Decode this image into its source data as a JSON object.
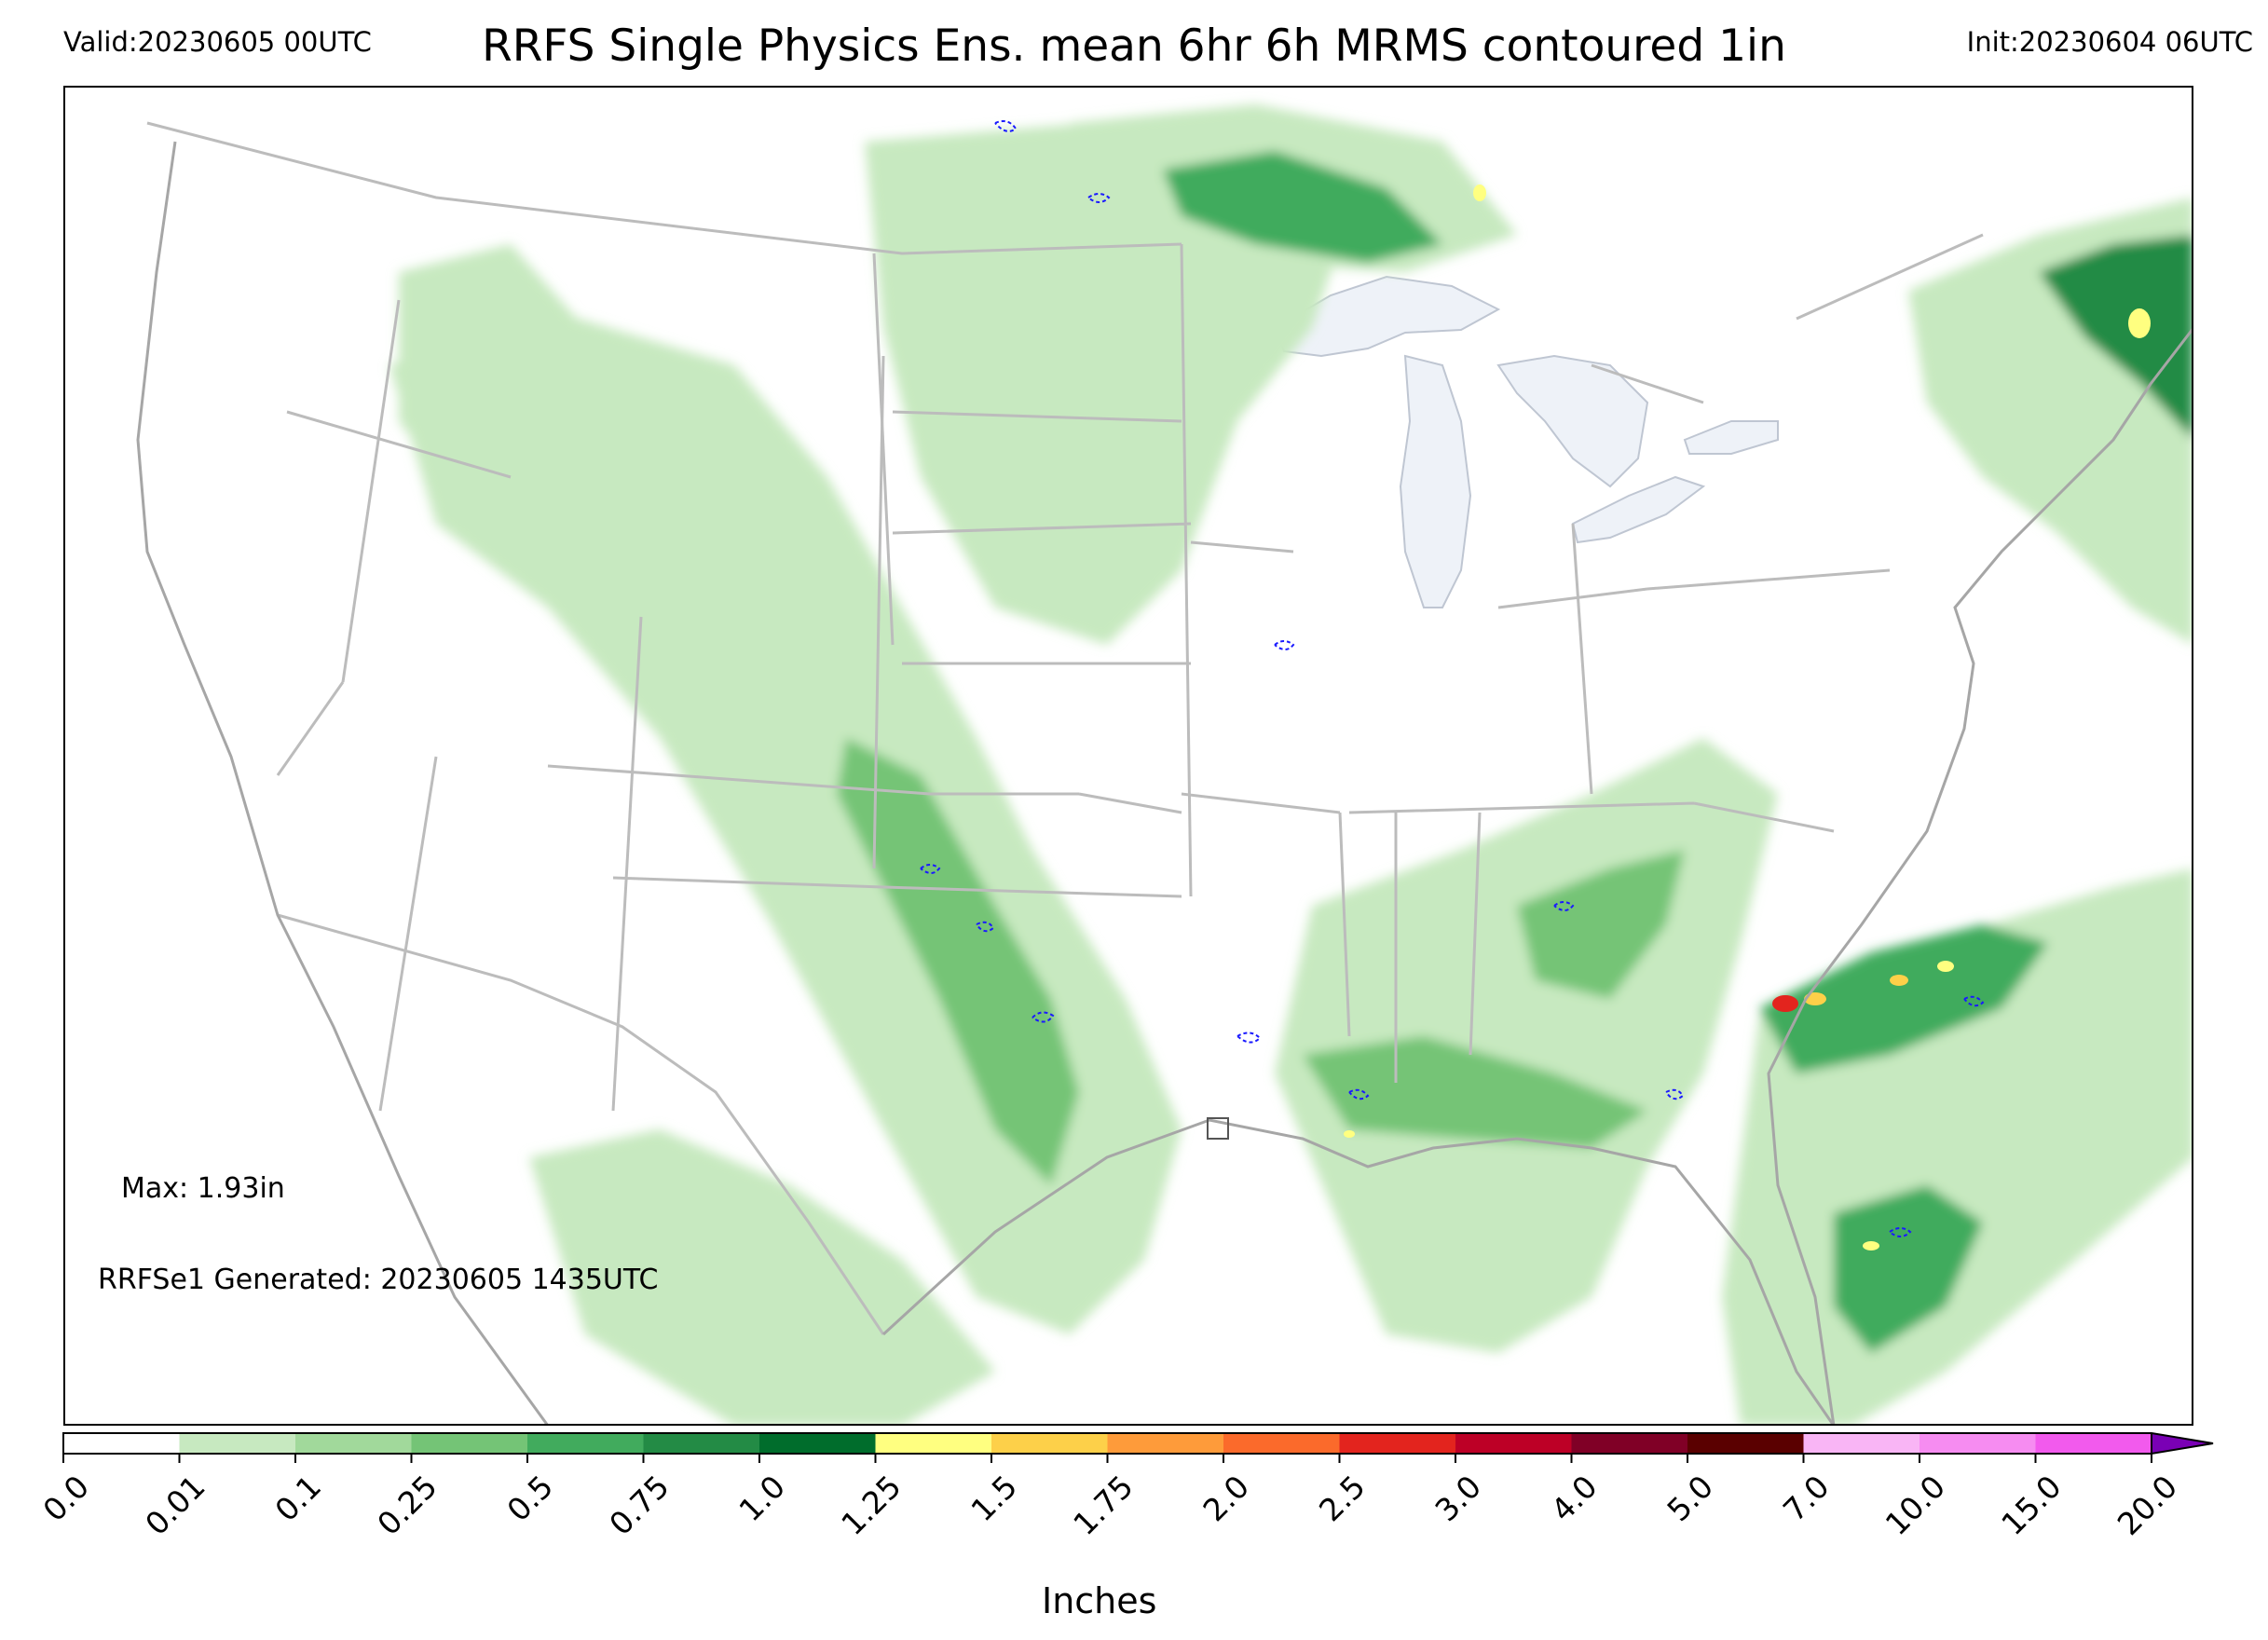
{
  "header": {
    "valid": "Valid:20230605 00UTC",
    "title": "RRFS Single Physics Ens. mean 6hr 6h MRMS contoured 1in",
    "init": "Init:20230604 06UTC"
  },
  "annotations": {
    "max": "Max: 1.93in",
    "generated": "RRFSe1 Generated: 20230605 1435UTC"
  },
  "colorbar": {
    "label": "Inches",
    "levels": [
      "0.0",
      "0.01",
      "0.1",
      "0.25",
      "0.5",
      "0.75",
      "1.0",
      "1.25",
      "1.5",
      "1.75",
      "2.0",
      "2.5",
      "3.0",
      "4.0",
      "5.0",
      "7.0",
      "10.0",
      "15.0",
      "20.0"
    ],
    "colors": [
      "#ffffff",
      "#c7e9c0",
      "#a1d99b",
      "#74c476",
      "#41ab5d",
      "#238b45",
      "#006d2c",
      "#ffff80",
      "#fdd049",
      "#fe9b3a",
      "#fb6a2b",
      "#e3241e",
      "#bd0026",
      "#800026",
      "#5a0000",
      "#f9b5f5",
      "#f68cf1",
      "#f25aed",
      "#e52ce5",
      "#c012d9",
      "#9a0ccc",
      "#7a00b5"
    ],
    "extend": "max"
  },
  "legend_colors": {
    "mrms_contour": "#1a1aff",
    "state_lines": "#bcbcbc",
    "coastlines": "#a6a6a6",
    "lakes": "#eef2f8"
  }
}
